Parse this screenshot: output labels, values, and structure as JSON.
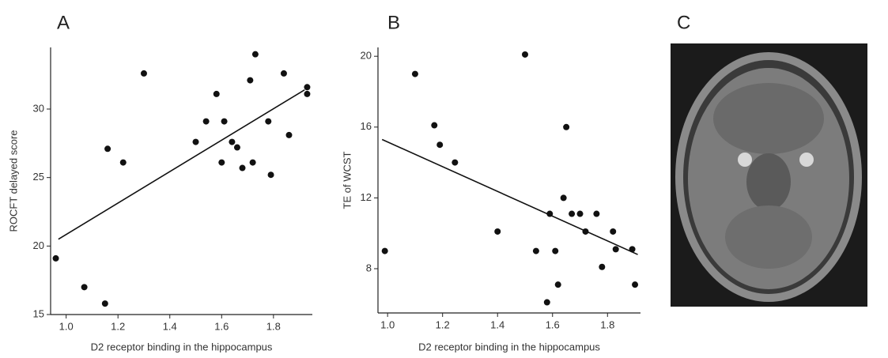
{
  "chart_data": [
    {
      "type": "scatter",
      "panel_label": "A",
      "x_label": "D2 receptor binding in the hippocampus",
      "y_label": "ROCFT delayed score",
      "x": [
        0.96,
        1.07,
        1.15,
        1.16,
        1.22,
        1.3,
        1.5,
        1.54,
        1.58,
        1.6,
        1.61,
        1.64,
        1.66,
        1.68,
        1.71,
        1.72,
        1.73,
        1.78,
        1.79,
        1.84,
        1.86,
        1.93,
        1.93
      ],
      "values": [
        19.1,
        17.0,
        15.8,
        27.1,
        26.1,
        32.6,
        27.6,
        29.1,
        31.1,
        26.1,
        29.1,
        27.6,
        27.2,
        25.7,
        32.1,
        26.1,
        34.0,
        29.1,
        25.2,
        32.6,
        28.1,
        31.6,
        31.1
      ],
      "color": "#111111",
      "fit_line": {
        "x": [
          0.97,
          1.92
        ],
        "y": [
          20.5,
          31.4
        ]
      },
      "xlim": [
        0.94,
        1.95
      ],
      "ylim": [
        15,
        34.5
      ],
      "xticks": [
        {
          "value": 1,
          "label": "1.0"
        },
        1.2,
        1.4,
        1.6,
        1.8
      ],
      "yticks": [
        15,
        20,
        25,
        30
      ]
    },
    {
      "type": "scatter",
      "panel_label": "B",
      "x_label": "D2 receptor binding in the hippocampus",
      "y_label": "TE of WCST",
      "x": [
        0.99,
        1.1,
        1.17,
        1.19,
        1.245,
        1.4,
        1.5,
        1.54,
        1.58,
        1.59,
        1.61,
        1.62,
        1.64,
        1.65,
        1.67,
        1.7,
        1.72,
        1.76,
        1.78,
        1.82,
        1.83,
        1.89,
        1.9
      ],
      "values": [
        9.0,
        19.0,
        16.1,
        15.0,
        14.0,
        10.1,
        20.1,
        9.0,
        6.1,
        11.1,
        9.0,
        7.1,
        12.0,
        16.0,
        11.1,
        11.1,
        10.1,
        11.1,
        8.1,
        10.1,
        9.1,
        9.1,
        7.1
      ],
      "color": "#111111",
      "fit_line": {
        "x": [
          0.98,
          1.91
        ],
        "y": [
          15.3,
          8.8
        ]
      },
      "xlim": [
        0.965,
        1.92
      ],
      "ylim": [
        5.5,
        20.5
      ],
      "xticks": [
        {
          "value": 1,
          "label": "1.0"
        },
        1.2,
        1.4,
        1.6,
        1.8
      ],
      "yticks": [
        8,
        12,
        16,
        20
      ]
    }
  ],
  "image_panel": {
    "label": "C"
  }
}
